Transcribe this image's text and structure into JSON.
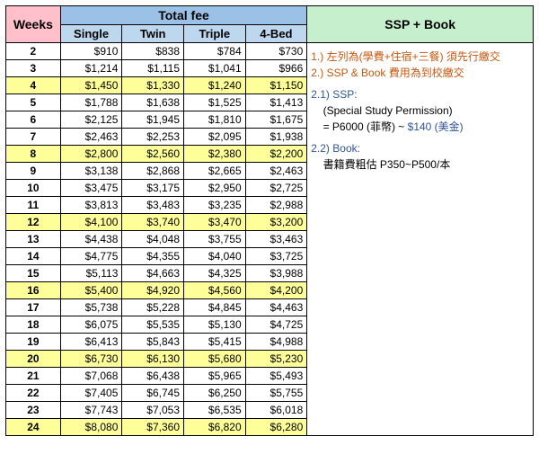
{
  "headers": {
    "weeks": "Weeks",
    "totalfee": "Total fee",
    "single": "Single",
    "twin": "Twin",
    "triple": "Triple",
    "fourbed": "4-Bed",
    "sspbook": "SSP + Book"
  },
  "rows": [
    {
      "w": "2",
      "s": "$910",
      "t": "$838",
      "r": "$784",
      "b": "$730",
      "hl": false
    },
    {
      "w": "3",
      "s": "$1,214",
      "t": "$1,115",
      "r": "$1,041",
      "b": "$966",
      "hl": false
    },
    {
      "w": "4",
      "s": "$1,450",
      "t": "$1,330",
      "r": "$1,240",
      "b": "$1,150",
      "hl": true
    },
    {
      "w": "5",
      "s": "$1,788",
      "t": "$1,638",
      "r": "$1,525",
      "b": "$1,413",
      "hl": false
    },
    {
      "w": "6",
      "s": "$2,125",
      "t": "$1,945",
      "r": "$1,810",
      "b": "$1,675",
      "hl": false
    },
    {
      "w": "7",
      "s": "$2,463",
      "t": "$2,253",
      "r": "$2,095",
      "b": "$1,938",
      "hl": false
    },
    {
      "w": "8",
      "s": "$2,800",
      "t": "$2,560",
      "r": "$2,380",
      "b": "$2,200",
      "hl": true
    },
    {
      "w": "9",
      "s": "$3,138",
      "t": "$2,868",
      "r": "$2,665",
      "b": "$2,463",
      "hl": false
    },
    {
      "w": "10",
      "s": "$3,475",
      "t": "$3,175",
      "r": "$2,950",
      "b": "$2,725",
      "hl": false
    },
    {
      "w": "11",
      "s": "$3,813",
      "t": "$3,483",
      "r": "$3,235",
      "b": "$2,988",
      "hl": false
    },
    {
      "w": "12",
      "s": "$4,100",
      "t": "$3,740",
      "r": "$3,470",
      "b": "$3,200",
      "hl": true
    },
    {
      "w": "13",
      "s": "$4,438",
      "t": "$4,048",
      "r": "$3,755",
      "b": "$3,463",
      "hl": false
    },
    {
      "w": "14",
      "s": "$4,775",
      "t": "$4,355",
      "r": "$4,040",
      "b": "$3,725",
      "hl": false
    },
    {
      "w": "15",
      "s": "$5,113",
      "t": "$4,663",
      "r": "$4,325",
      "b": "$3,988",
      "hl": false
    },
    {
      "w": "16",
      "s": "$5,400",
      "t": "$4,920",
      "r": "$4,560",
      "b": "$4,200",
      "hl": true
    },
    {
      "w": "17",
      "s": "$5,738",
      "t": "$5,228",
      "r": "$4,845",
      "b": "$4,463",
      "hl": false
    },
    {
      "w": "18",
      "s": "$6,075",
      "t": "$5,535",
      "r": "$5,130",
      "b": "$4,725",
      "hl": false
    },
    {
      "w": "19",
      "s": "$6,413",
      "t": "$5,843",
      "r": "$5,415",
      "b": "$4,988",
      "hl": false
    },
    {
      "w": "20",
      "s": "$6,730",
      "t": "$6,130",
      "r": "$5,680",
      "b": "$5,230",
      "hl": true
    },
    {
      "w": "21",
      "s": "$7,068",
      "t": "$6,438",
      "r": "$5,965",
      "b": "$5,493",
      "hl": false
    },
    {
      "w": "22",
      "s": "$7,405",
      "t": "$6,745",
      "r": "$6,250",
      "b": "$5,755",
      "hl": false
    },
    {
      "w": "23",
      "s": "$7,743",
      "t": "$7,053",
      "r": "$6,535",
      "b": "$6,018",
      "hl": false
    },
    {
      "w": "24",
      "s": "$8,080",
      "t": "$7,360",
      "r": "$6,820",
      "b": "$6,280",
      "hl": true
    }
  ],
  "notes": {
    "n1": "1.) 左列為(學費+住宿+三餐) 須先行繳交",
    "n2": "2.) SSP & Book 費用為到校繳交",
    "n21label": "2.1) SSP:",
    "n21a": "(Special Study Permission)",
    "n21b_pre": "= P6000 (菲幣) ~ ",
    "n21b_blue": "$140 (美金)",
    "n22label": "2.2) Book:",
    "n22a": "書籍費粗估 P350~P500/本"
  }
}
